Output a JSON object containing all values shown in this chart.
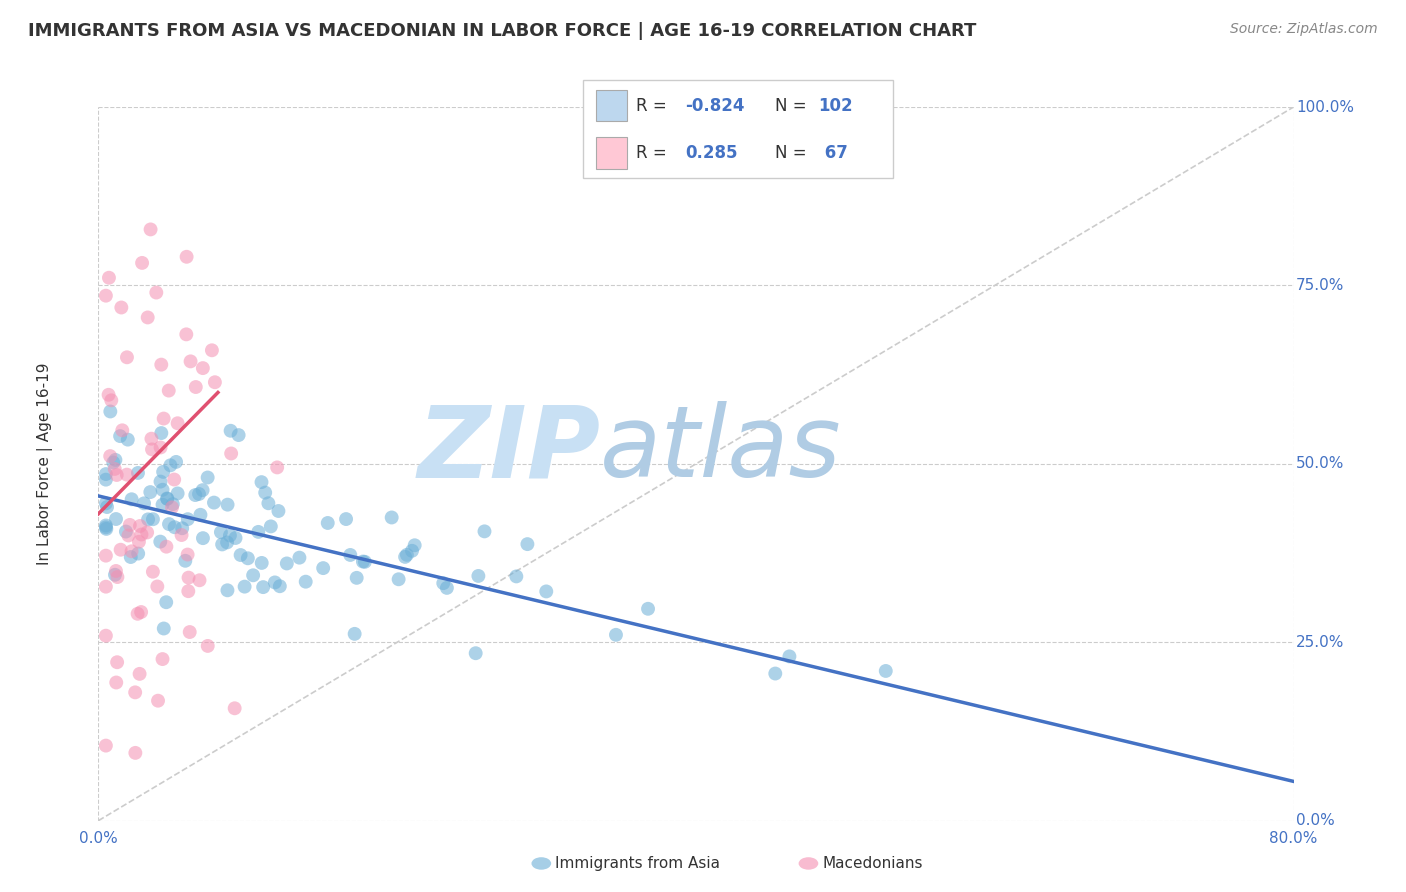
{
  "title": "IMMIGRANTS FROM ASIA VS MACEDONIAN IN LABOR FORCE | AGE 16-19 CORRELATION CHART",
  "source_text": "Source: ZipAtlas.com",
  "ylabel": "In Labor Force | Age 16-19",
  "xlim": [
    0.0,
    0.8
  ],
  "ylim": [
    0.0,
    1.0
  ],
  "ytick_vals": [
    0.0,
    0.25,
    0.5,
    0.75,
    1.0
  ],
  "ytick_labels": [
    "0.0%",
    "25.0%",
    "50.0%",
    "75.0%",
    "100.0%"
  ],
  "xtick_vals": [
    0.0,
    0.8
  ],
  "xtick_labels": [
    "0.0%",
    "80.0%"
  ],
  "grid_color": "#cccccc",
  "background_color": "#ffffff",
  "blue_scatter_color": "#6baed6",
  "blue_line_color": "#4472c4",
  "blue_legend_fill": "#bdd7ee",
  "pink_scatter_color": "#f48fb1",
  "pink_line_color": "#e05070",
  "pink_legend_fill": "#ffc8d5",
  "ref_line_color": "#cccccc",
  "tick_color": "#4472c4",
  "text_color": "#333333",
  "source_color": "#888888",
  "watermark_zip_color": "#c8e0f4",
  "watermark_atlas_color": "#b0cce4",
  "legend_border_color": "#cccccc",
  "title_fontsize": 13,
  "tick_fontsize": 11,
  "ylabel_fontsize": 11,
  "scatter_size": 100,
  "scatter_alpha": 0.55,
  "blue_trend_start_x": 0.0,
  "blue_trend_end_x": 0.8,
  "blue_trend_start_y": 0.455,
  "blue_trend_end_y": 0.055,
  "pink_trend_start_x": 0.0,
  "pink_trend_end_x": 0.08,
  "pink_trend_start_y": 0.43,
  "pink_trend_end_y": 0.6,
  "n_asia": 102,
  "n_mac": 67,
  "asia_seed": 10,
  "mac_seed": 20
}
